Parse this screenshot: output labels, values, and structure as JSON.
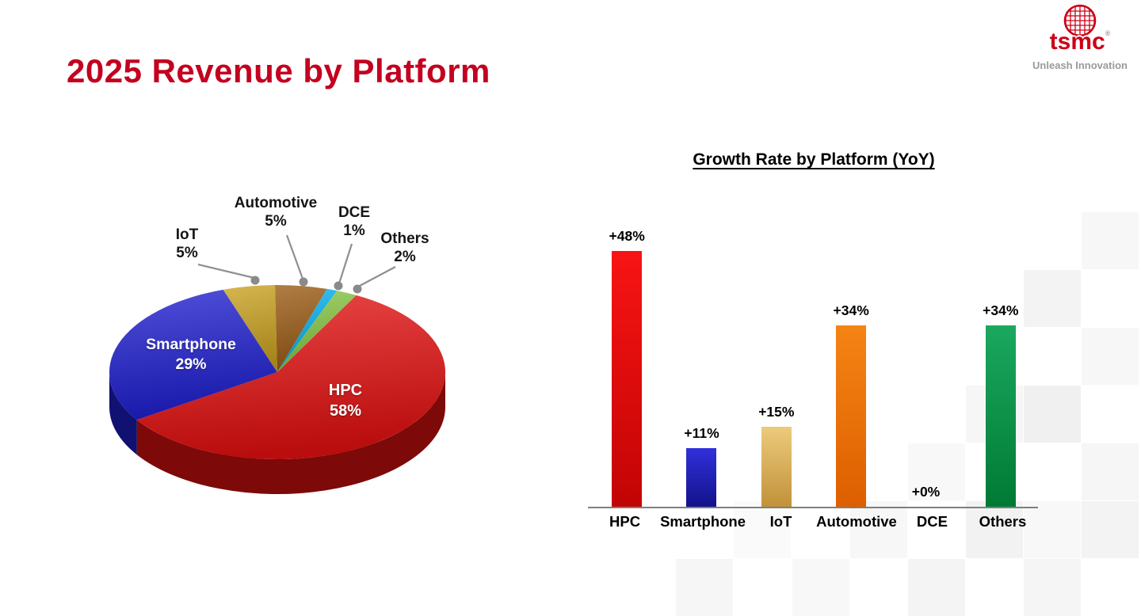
{
  "slide": {
    "title": "2025 Revenue by Platform",
    "title_color": "#c3001f"
  },
  "logo": {
    "brand": "tsmc",
    "registered": "®",
    "tagline": "Unleash Innovation"
  },
  "chart_data": [
    {
      "type": "pie",
      "name": "2025 Revenue by Platform",
      "unit": "percent",
      "direction": "clockwise",
      "slices": [
        {
          "label": "HPC",
          "value": 58,
          "display": "58%",
          "color": "#e31010",
          "label_placement": "inside"
        },
        {
          "label": "Smartphone",
          "value": 29,
          "display": "29%",
          "color": "#1f1fd0",
          "label_placement": "inside"
        },
        {
          "label": "IoT",
          "value": 5,
          "display": "5%",
          "color": "#c9a11e",
          "label_placement": "callout"
        },
        {
          "label": "Automotive",
          "value": 5,
          "display": "5%",
          "color": "#9a5a12",
          "label_placement": "callout"
        },
        {
          "label": "DCE",
          "value": 1,
          "display": "1%",
          "color": "#00aeef",
          "label_placement": "callout"
        },
        {
          "label": "Others",
          "value": 2,
          "display": "2%",
          "color": "#85c440",
          "label_placement": "callout"
        }
      ]
    },
    {
      "type": "bar",
      "title": "Growth Rate by Platform (YoY)",
      "categories": [
        "HPC",
        "Smartphone",
        "IoT",
        "Automotive",
        "DCE",
        "Others"
      ],
      "values": [
        48,
        11,
        15,
        34,
        0,
        34
      ],
      "value_labels": [
        "+48%",
        "+11%",
        "+15%",
        "+34%",
        "+0%",
        "+34%"
      ],
      "bar_colors": [
        [
          "#f81414",
          "#c20404"
        ],
        [
          "#3030dc",
          "#12128a"
        ],
        [
          "#eccb7c",
          "#c2913a"
        ],
        [
          "#f58414",
          "#dd5f00"
        ],
        null,
        [
          "#1ba85e",
          "#007a35"
        ]
      ],
      "ylim": [
        0,
        50
      ],
      "legend": "none",
      "gridlines": "none"
    }
  ]
}
